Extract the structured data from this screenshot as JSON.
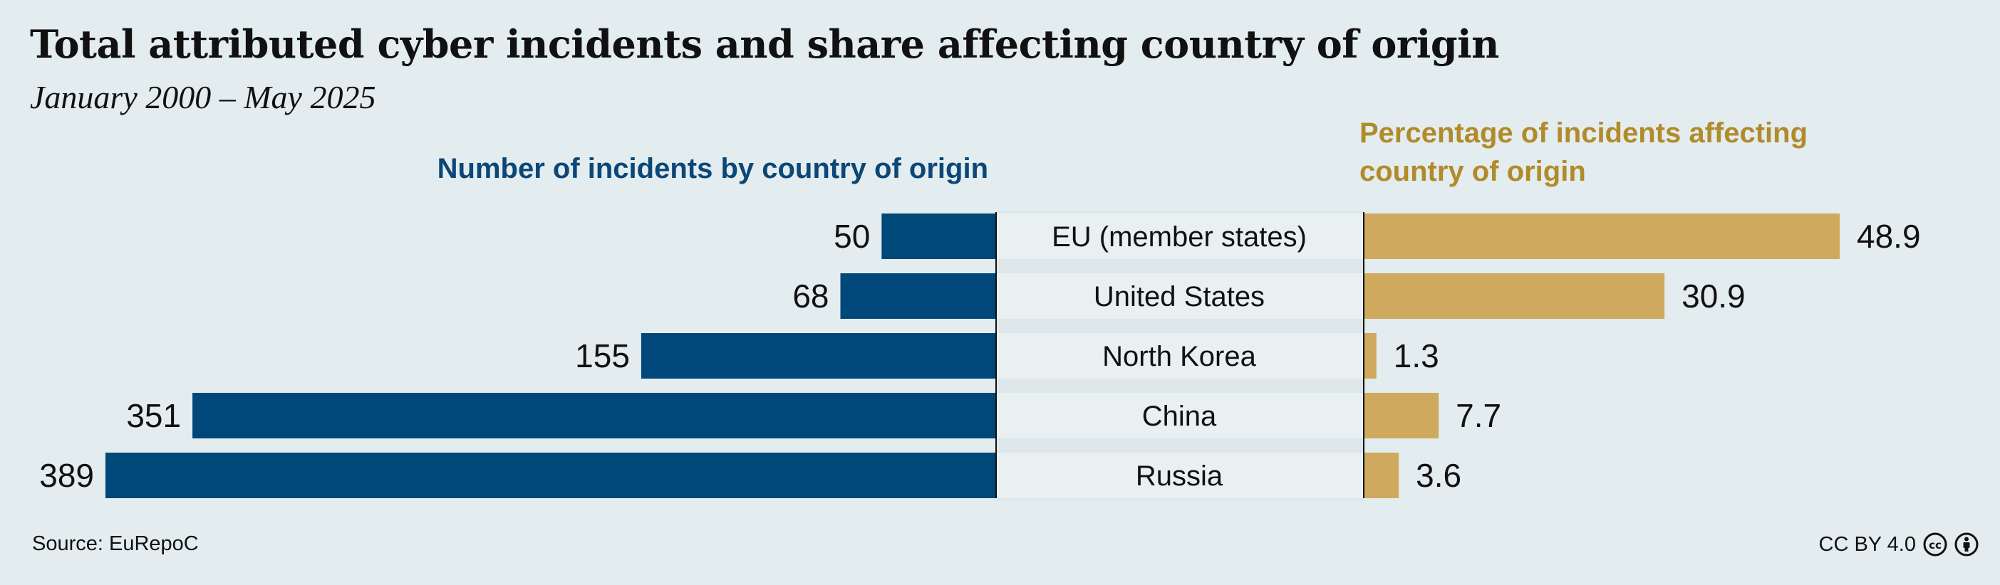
{
  "title": "Total attributed cyber incidents and share affecting country of origin",
  "subtitle": "January 2000 – May 2025",
  "left_header": "Number of incidents by country of origin",
  "right_header_line1": "Percentage of incidents affecting",
  "right_header_line2": "country of origin",
  "source": "Source: EuRepoC",
  "license": "CC BY 4.0",
  "license_icons": [
    "cc-icon",
    "by-icon"
  ],
  "colors": {
    "left_bars": "#00477a",
    "right_bars": "#cfa95e",
    "label_band": "#e8f0f2",
    "background": "#e3ecee"
  },
  "chart_data": [
    {
      "type": "bar",
      "orientation": "horizontal",
      "direction": "right-to-left",
      "title": "Number of incidents by country of origin",
      "categories": [
        "EU (member states)",
        "United States",
        "North Korea",
        "China",
        "Russia"
      ],
      "values": [
        50,
        68,
        155,
        351,
        389
      ],
      "xlim": [
        0,
        389
      ],
      "grid": false
    },
    {
      "type": "bar",
      "orientation": "horizontal",
      "direction": "left-to-right",
      "title": "Percentage of incidents affecting country of origin",
      "categories": [
        "EU (member states)",
        "United States",
        "North Korea",
        "China",
        "Russia"
      ],
      "values": [
        48.9,
        30.9,
        1.3,
        7.7,
        3.6
      ],
      "value_labels": [
        "48.9",
        "30.9",
        "1.3",
        "7.7",
        "3.6"
      ],
      "xlim": [
        0,
        48.9
      ],
      "grid": false
    }
  ]
}
